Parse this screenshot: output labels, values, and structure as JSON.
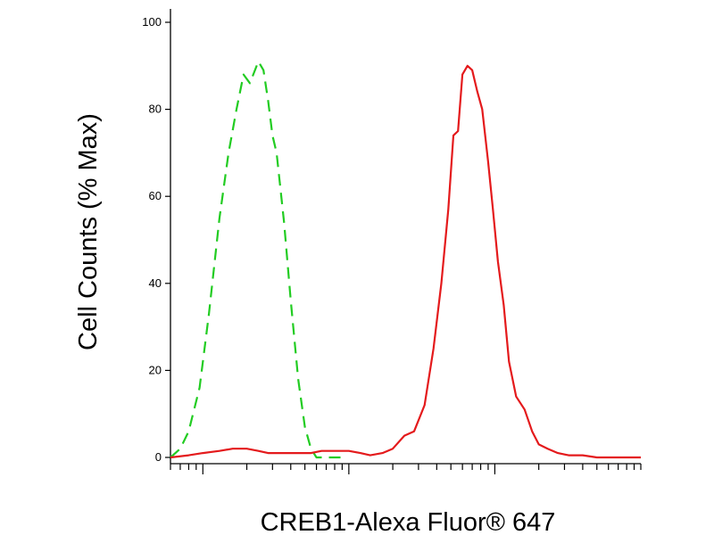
{
  "chart_data": {
    "type": "line",
    "title": "",
    "xlabel": "CREB1-Alexa Fluor® 647",
    "ylabel": "Cell Counts (% Max)",
    "ylim": [
      0,
      100
    ],
    "yticks": [
      {
        "value": 0,
        "label": "0"
      },
      {
        "value": 20,
        "label": "20"
      },
      {
        "value": 40,
        "label": "40"
      },
      {
        "value": 60,
        "label": "60"
      },
      {
        "value": 80,
        "label": "80"
      },
      {
        "value": 100,
        "label": "100"
      }
    ],
    "x_scale": "log",
    "xlim": [
      0.6,
      1000
    ],
    "x_major_ticks": [
      1,
      10,
      100
    ],
    "xtick_labels": [],
    "grid": false,
    "legend": "none",
    "series": [
      {
        "style": "dashed",
        "color": "#22cc22",
        "x": [
          0.6,
          0.7,
          0.8,
          0.95,
          1.1,
          1.3,
          1.5,
          1.7,
          1.9,
          2.1,
          2.4,
          2.6,
          2.8,
          3.0,
          3.2,
          3.6,
          4.0,
          4.5,
          5.0,
          5.5,
          6.0,
          6.6,
          7.2,
          8.0,
          8.8,
          9.5
        ],
        "y": [
          0,
          2,
          6,
          16,
          33,
          55,
          70,
          80,
          88,
          86,
          91,
          89,
          82,
          74,
          70,
          54,
          36,
          18,
          7,
          2,
          0,
          0,
          0,
          0,
          0,
          0
        ]
      },
      {
        "style": "solid",
        "color": "#e41a1c",
        "x": [
          0.6,
          0.8,
          1.0,
          1.3,
          1.6,
          2.0,
          2.4,
          2.8,
          3.5,
          4.5,
          5.5,
          6.5,
          8.0,
          10.0,
          12.0,
          14.0,
          17.0,
          20.0,
          24.0,
          28.0,
          33.0,
          38.0,
          43.0,
          48.0,
          52.0,
          56.0,
          60.0,
          65.0,
          70.0,
          76.0,
          82.0,
          90.0,
          97.0,
          105.0,
          115.0,
          125.0,
          140.0,
          160.0,
          180.0,
          200.0,
          230.0,
          270.0,
          320.0,
          400.0,
          500.0,
          650.0,
          850.0,
          1000.0
        ],
        "y": [
          0,
          0.5,
          1,
          1.5,
          2,
          2,
          1.5,
          1,
          1,
          1,
          1,
          1.5,
          1.5,
          1.5,
          1,
          0.5,
          1,
          2,
          5,
          6,
          12,
          25,
          40,
          57,
          74,
          75,
          88,
          90,
          89,
          84,
          80,
          68,
          57,
          45,
          35,
          22,
          14,
          11,
          6,
          3,
          2,
          1,
          0.5,
          0.5,
          0,
          0,
          0,
          0
        ]
      }
    ]
  }
}
